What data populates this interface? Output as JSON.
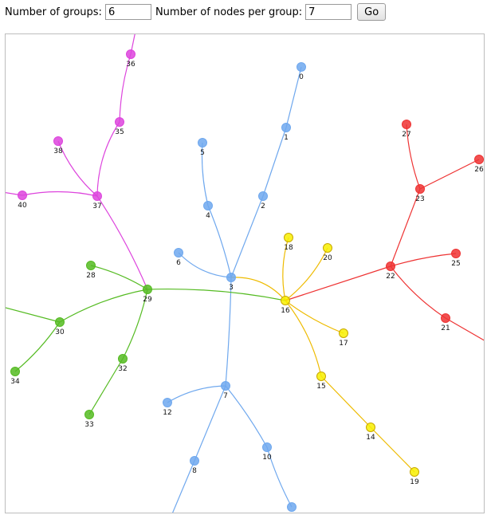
{
  "controls": {
    "groups_label": "Number of groups:",
    "groups_value": "6",
    "nodes_label": "Number of nodes per group:",
    "nodes_value": "7",
    "go_label": "Go"
  },
  "graph": {
    "colors": {
      "blue": "#6fa8ee",
      "red": "#ee3333",
      "magenta": "#dd44dd",
      "green": "#55bb22",
      "yellow": "#eebb00",
      "yellow_fill": "#f8f000"
    },
    "nodes": [
      {
        "id": "0",
        "label": "0",
        "color": "blue"
      },
      {
        "id": "1",
        "label": "1",
        "color": "blue"
      },
      {
        "id": "2",
        "label": "2",
        "color": "blue"
      },
      {
        "id": "3",
        "label": "3",
        "color": "blue"
      },
      {
        "id": "4",
        "label": "4",
        "color": "blue"
      },
      {
        "id": "5",
        "label": "5",
        "color": "blue"
      },
      {
        "id": "6",
        "label": "6",
        "color": "blue"
      },
      {
        "id": "7",
        "label": "7",
        "color": "blue"
      },
      {
        "id": "8",
        "label": "8",
        "color": "blue"
      },
      {
        "id": "10",
        "label": "10",
        "color": "blue"
      },
      {
        "id": "12",
        "label": "12",
        "color": "blue"
      },
      {
        "id": "n11",
        "label": "",
        "color": "blue"
      },
      {
        "id": "14",
        "label": "14",
        "color": "yellow"
      },
      {
        "id": "15",
        "label": "15",
        "color": "yellow"
      },
      {
        "id": "16",
        "label": "16",
        "color": "yellow"
      },
      {
        "id": "17",
        "label": "17",
        "color": "yellow"
      },
      {
        "id": "18",
        "label": "18",
        "color": "yellow"
      },
      {
        "id": "19",
        "label": "19",
        "color": "yellow"
      },
      {
        "id": "20",
        "label": "20",
        "color": "yellow"
      },
      {
        "id": "21",
        "label": "21",
        "color": "red"
      },
      {
        "id": "22",
        "label": "22",
        "color": "red"
      },
      {
        "id": "23",
        "label": "23",
        "color": "red"
      },
      {
        "id": "25",
        "label": "25",
        "color": "red"
      },
      {
        "id": "26",
        "label": "26",
        "color": "red"
      },
      {
        "id": "27",
        "label": "27",
        "color": "red"
      },
      {
        "id": "28",
        "label": "28",
        "color": "green"
      },
      {
        "id": "29",
        "label": "29",
        "color": "green"
      },
      {
        "id": "30",
        "label": "30",
        "color": "green"
      },
      {
        "id": "32",
        "label": "32",
        "color": "green"
      },
      {
        "id": "33",
        "label": "33",
        "color": "green"
      },
      {
        "id": "34",
        "label": "34",
        "color": "green"
      },
      {
        "id": "35",
        "label": "35",
        "color": "magenta"
      },
      {
        "id": "36",
        "label": "36",
        "color": "magenta"
      },
      {
        "id": "37",
        "label": "37",
        "color": "magenta"
      },
      {
        "id": "38",
        "label": "38",
        "color": "magenta"
      },
      {
        "id": "40",
        "label": "40",
        "color": "magenta"
      }
    ],
    "edges": [
      {
        "from": "0",
        "to": "1",
        "color": "blue"
      },
      {
        "from": "1",
        "to": "2",
        "color": "blue"
      },
      {
        "from": "2",
        "to": "3",
        "color": "blue"
      },
      {
        "from": "5",
        "to": "4",
        "color": "blue"
      },
      {
        "from": "4",
        "to": "3",
        "color": "blue"
      },
      {
        "from": "6",
        "to": "3",
        "color": "blue"
      },
      {
        "from": "3",
        "to": "7",
        "color": "blue"
      },
      {
        "from": "7",
        "to": "12",
        "color": "blue"
      },
      {
        "from": "7",
        "to": "8",
        "color": "blue"
      },
      {
        "from": "7",
        "to": "10",
        "color": "blue"
      },
      {
        "from": "10",
        "to": "n11",
        "color": "blue"
      },
      {
        "from": "3",
        "to": "16",
        "color": "yellow"
      },
      {
        "from": "16",
        "to": "18",
        "color": "yellow"
      },
      {
        "from": "16",
        "to": "20",
        "color": "yellow"
      },
      {
        "from": "16",
        "to": "17",
        "color": "yellow"
      },
      {
        "from": "16",
        "to": "15",
        "color": "yellow"
      },
      {
        "from": "15",
        "to": "14",
        "color": "yellow"
      },
      {
        "from": "14",
        "to": "19",
        "color": "yellow"
      },
      {
        "from": "16",
        "to": "22",
        "color": "red"
      },
      {
        "from": "22",
        "to": "23",
        "color": "red"
      },
      {
        "from": "22",
        "to": "25",
        "color": "red"
      },
      {
        "from": "22",
        "to": "21",
        "color": "red"
      },
      {
        "from": "23",
        "to": "27",
        "color": "red"
      },
      {
        "from": "23",
        "to": "26",
        "color": "red"
      },
      {
        "from": "29",
        "to": "16",
        "color": "green"
      },
      {
        "from": "28",
        "to": "29",
        "color": "green"
      },
      {
        "from": "29",
        "to": "30",
        "color": "green"
      },
      {
        "from": "29",
        "to": "32",
        "color": "green"
      },
      {
        "from": "32",
        "to": "33",
        "color": "green"
      },
      {
        "from": "30",
        "to": "34",
        "color": "green"
      },
      {
        "from": "37",
        "to": "29",
        "color": "magenta"
      },
      {
        "from": "37",
        "to": "35",
        "color": "magenta"
      },
      {
        "from": "35",
        "to": "36",
        "color": "magenta"
      },
      {
        "from": "37",
        "to": "38",
        "color": "magenta"
      },
      {
        "from": "37",
        "to": "40",
        "color": "magenta"
      }
    ]
  }
}
